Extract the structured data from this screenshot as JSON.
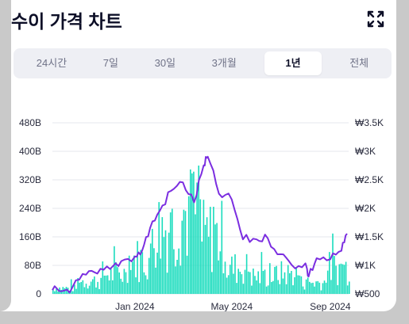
{
  "title": "수이 가격 차트",
  "icons": {
    "expand": "expand-icon"
  },
  "tabs": [
    {
      "label": "24시간",
      "active": false
    },
    {
      "label": "7일",
      "active": false
    },
    {
      "label": "30일",
      "active": false
    },
    {
      "label": "3개월",
      "active": false
    },
    {
      "label": "1년",
      "active": true
    },
    {
      "label": "전체",
      "active": false
    }
  ],
  "colors": {
    "price_line": "#7b2ee0",
    "volume_bars": "#19dcbd",
    "grid": "#e6e7ec"
  },
  "chart_data": {
    "type": "line",
    "x_ticks": [
      "Jan 2024",
      "May 2024",
      "Sep 2024"
    ],
    "y_left_ticks": [
      "0",
      "80B",
      "160B",
      "240B",
      "320B",
      "400B",
      "480B"
    ],
    "y_left_range": [
      0,
      480
    ],
    "y_right_ticks": [
      "₩500",
      "₩1K",
      "₩1.5K",
      "₩2K",
      "₩2.5K",
      "₩3K",
      "₩3.5K"
    ],
    "y_right_range": [
      500,
      3500
    ],
    "grid": true,
    "series": [
      {
        "kind": "price",
        "axis": "right",
        "x": [
          "2023-09-20",
          "2023-10-01",
          "2023-10-15",
          "2023-11-01",
          "2023-11-15",
          "2023-12-01",
          "2023-12-15",
          "2024-01-01",
          "2024-01-10",
          "2024-01-20",
          "2024-02-01",
          "2024-02-15",
          "2024-03-01",
          "2024-03-15",
          "2024-03-27",
          "2024-04-01",
          "2024-04-15",
          "2024-05-01",
          "2024-05-15",
          "2024-06-01",
          "2024-06-15",
          "2024-07-01",
          "2024-07-15",
          "2024-08-01",
          "2024-08-05",
          "2024-08-15",
          "2024-09-01",
          "2024-09-15",
          "2024-09-22"
        ],
        "values": [
          510,
          490,
          560,
          780,
          800,
          880,
          1020,
          1100,
          1200,
          1600,
          1900,
          2250,
          2400,
          2050,
          2700,
          2850,
          2200,
          2100,
          1400,
          1400,
          1420,
          1140,
          950,
          980,
          750,
          1070,
          1050,
          1200,
          1500
        ]
      },
      {
        "kind": "volume",
        "axis": "left",
        "note": "daily trading volume bars",
        "x": [
          "2023-10",
          "2023-11",
          "2023-12",
          "2024-01",
          "2024-02",
          "2024-03",
          "2024-04",
          "2024-05",
          "2024-06",
          "2024-07",
          "2024-08",
          "2024-09"
        ],
        "values": [
          20,
          45,
          70,
          120,
          230,
          280,
          200,
          90,
          60,
          70,
          40,
          90
        ]
      }
    ]
  }
}
